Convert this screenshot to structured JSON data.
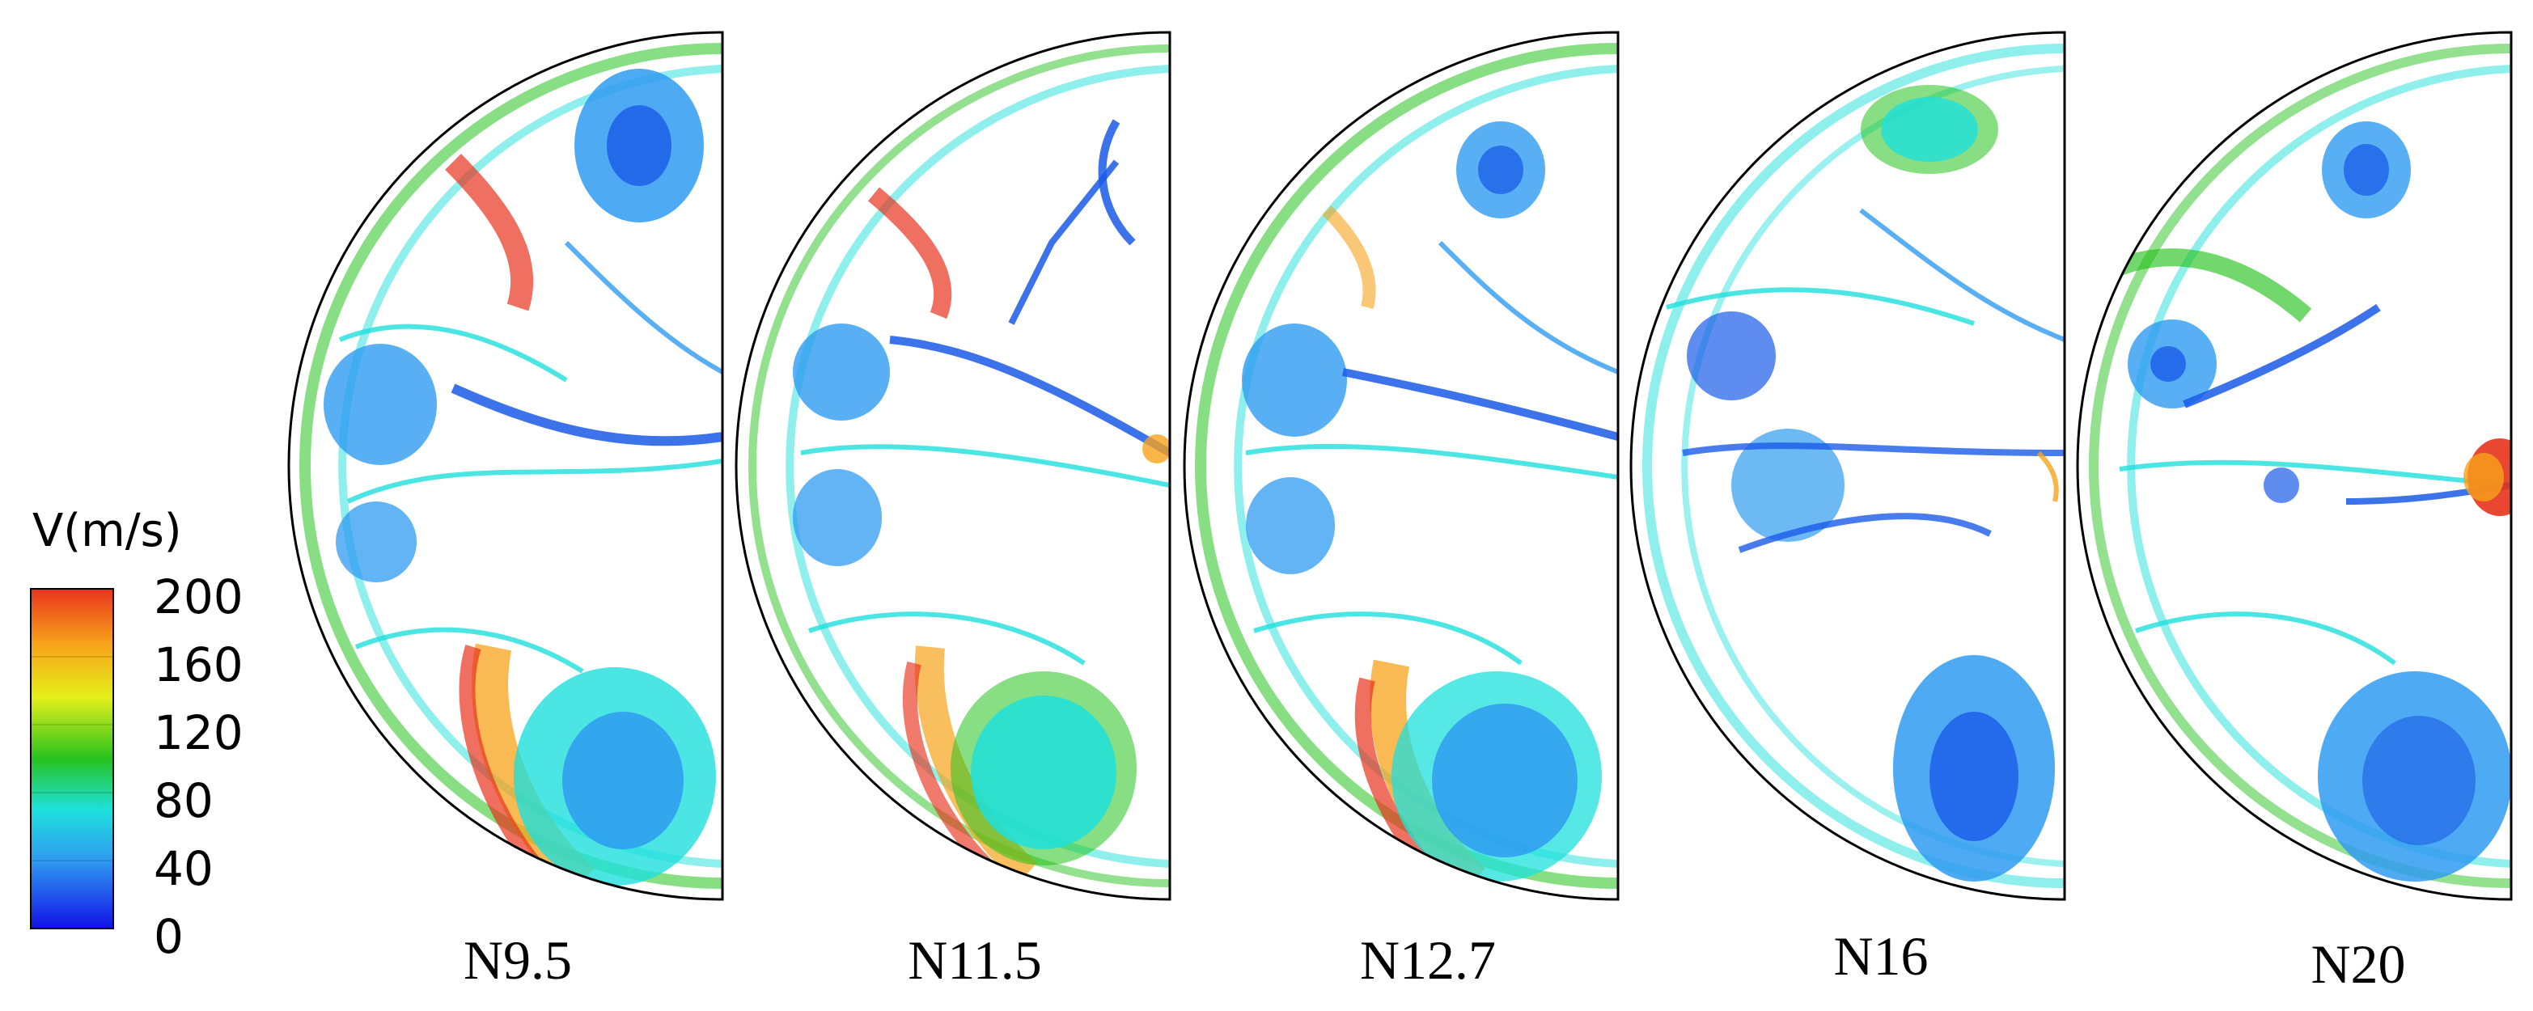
{
  "legend": {
    "title": "V(m/s)",
    "ticks": [
      "200",
      "160",
      "120",
      "80",
      "40",
      "0"
    ],
    "colors": [
      "#e8331c",
      "#f7a21a",
      "#e4ef1a",
      "#27c21e",
      "#1ee0dc",
      "#2f9bf0",
      "#1212e6"
    ]
  },
  "panels": [
    {
      "label": "N9.5"
    },
    {
      "label": "N11.5"
    },
    {
      "label": "N12.7"
    },
    {
      "label": "N16"
    },
    {
      "label": "N20"
    }
  ]
}
